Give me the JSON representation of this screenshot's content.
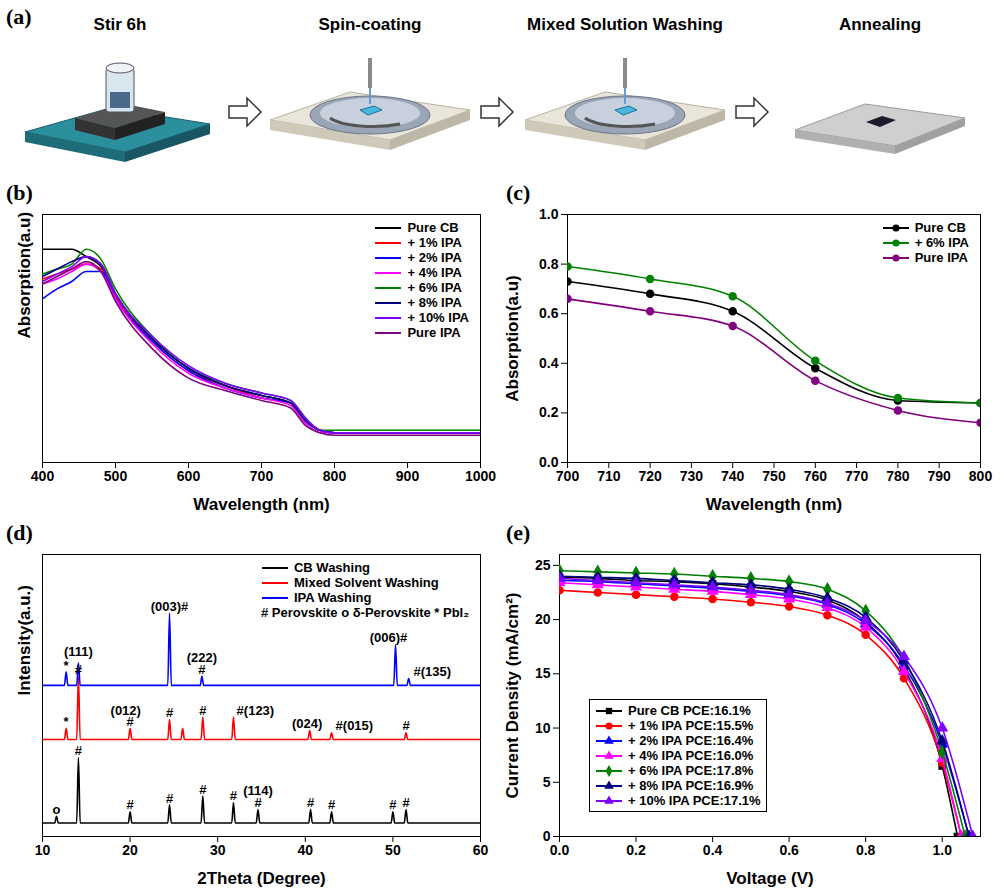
{
  "diagram": {
    "panel": "(a)",
    "steps": [
      "Stir 6h",
      "Spin-coating",
      "Mixed Solution Washing",
      "Annealing"
    ]
  },
  "chart_data": [
    {
      "panel": "(b)",
      "type": "line",
      "xlabel": "Wavelength (nm)",
      "ylabel": "Absorption(a.u)",
      "xlim": [
        400,
        1000
      ],
      "xticks": [
        400,
        500,
        600,
        700,
        800,
        900,
        1000
      ],
      "ylim": [
        0,
        1
      ],
      "tick_labels": "x",
      "legend": "upper right",
      "x": [
        400,
        420,
        440,
        460,
        480,
        500,
        550,
        600,
        650,
        700,
        740,
        760,
        780,
        800,
        900,
        1000
      ],
      "series": [
        {
          "name": "Pure CB",
          "color": "#000000",
          "values": [
            0.86,
            0.86,
            0.86,
            0.83,
            0.79,
            0.68,
            0.5,
            0.38,
            0.31,
            0.27,
            0.24,
            0.17,
            0.13,
            0.12,
            0.12,
            0.12
          ]
        },
        {
          "name": "+ 1% IPA",
          "color": "#ff0000",
          "values": [
            0.74,
            0.76,
            0.78,
            0.8,
            0.78,
            0.67,
            0.49,
            0.37,
            0.31,
            0.26,
            0.24,
            0.17,
            0.13,
            0.12,
            0.12,
            0.12
          ]
        },
        {
          "name": "+ 2% IPA",
          "color": "#0000ff",
          "values": [
            0.66,
            0.7,
            0.73,
            0.77,
            0.77,
            0.66,
            0.49,
            0.37,
            0.3,
            0.26,
            0.24,
            0.17,
            0.13,
            0.12,
            0.12,
            0.12
          ]
        },
        {
          "name": "+ 4% IPA",
          "color": "#ff00ff",
          "values": [
            0.72,
            0.74,
            0.77,
            0.8,
            0.77,
            0.66,
            0.48,
            0.36,
            0.3,
            0.26,
            0.23,
            0.16,
            0.12,
            0.12,
            0.12,
            0.12
          ]
        },
        {
          "name": "+ 6% IPA",
          "color": "#008000",
          "values": [
            0.76,
            0.78,
            0.8,
            0.86,
            0.82,
            0.7,
            0.51,
            0.38,
            0.32,
            0.28,
            0.25,
            0.18,
            0.13,
            0.13,
            0.13,
            0.13
          ]
        },
        {
          "name": "+ 8% IPA",
          "color": "#000080",
          "values": [
            0.75,
            0.78,
            0.81,
            0.83,
            0.8,
            0.68,
            0.5,
            0.38,
            0.31,
            0.27,
            0.24,
            0.17,
            0.13,
            0.12,
            0.12,
            0.12
          ]
        },
        {
          "name": "+ 10% IPA",
          "color": "#8000ff",
          "values": [
            0.73,
            0.76,
            0.79,
            0.83,
            0.8,
            0.68,
            0.51,
            0.39,
            0.32,
            0.28,
            0.25,
            0.18,
            0.13,
            0.12,
            0.12,
            0.12
          ]
        },
        {
          "name": "Pure IPA",
          "color": "#800080",
          "values": [
            0.72,
            0.75,
            0.78,
            0.81,
            0.77,
            0.65,
            0.46,
            0.34,
            0.29,
            0.25,
            0.22,
            0.15,
            0.12,
            0.11,
            0.11,
            0.11
          ]
        }
      ]
    },
    {
      "panel": "(c)",
      "type": "line",
      "xlabel": "Wavelength (nm)",
      "ylabel": "Absorption(a.u)",
      "xlim": [
        700,
        800
      ],
      "xticks": [
        700,
        710,
        720,
        730,
        740,
        750,
        760,
        770,
        780,
        790,
        800
      ],
      "ylim": [
        0,
        1
      ],
      "yticks": [
        {
          "value": 0,
          "label": "0.0"
        },
        0.2,
        0.4,
        0.6,
        0.8,
        {
          "value": 1,
          "label": "1.0"
        }
      ],
      "legend": "upper right",
      "x": [
        700,
        720,
        740,
        760,
        780,
        800
      ],
      "series": [
        {
          "name": "Pure CB",
          "color": "#000000",
          "marker": "circle",
          "values": [
            0.73,
            0.68,
            0.61,
            0.38,
            0.25,
            0.24
          ]
        },
        {
          "name": "+ 6% IPA",
          "color": "#008000",
          "marker": "circle",
          "values": [
            0.79,
            0.74,
            0.67,
            0.41,
            0.26,
            0.24
          ]
        },
        {
          "name": "Pure IPA",
          "color": "#800080",
          "marker": "circle",
          "values": [
            0.66,
            0.61,
            0.55,
            0.33,
            0.21,
            0.16
          ]
        }
      ]
    },
    {
      "panel": "(d)",
      "type": "line",
      "xlabel": "2Theta (Degree)",
      "ylabel": "Intensity(a.u.)",
      "xlim": [
        10,
        60
      ],
      "xticks": [
        10,
        20,
        30,
        40,
        50,
        60
      ],
      "ylim": [
        0,
        125
      ],
      "tick_labels": "x",
      "legend": "upper right",
      "key": "# Perovskite o δ-Perovskite * PbI₂",
      "series": [
        {
          "name": "CB Washing",
          "color": "#000000",
          "x": [
            10,
            11.4,
            11.6,
            11.8,
            13.9,
            14.1,
            14.3,
            19.8,
            20,
            20.2,
            24.3,
            24.5,
            24.7,
            28.1,
            28.3,
            28.5,
            31.6,
            31.8,
            32,
            34.4,
            34.6,
            34.8,
            40.4,
            40.6,
            40.8,
            42.8,
            43,
            43.2,
            49.8,
            50,
            50.2,
            51.3,
            51.5,
            51.7,
            60
          ],
          "values": [
            6,
            6,
            9,
            6,
            6,
            35,
            6,
            6,
            11,
            6,
            6,
            14,
            6,
            6,
            18,
            6,
            6,
            15,
            6,
            6,
            12,
            6,
            6,
            12,
            6,
            6,
            11,
            6,
            6,
            11,
            6,
            6,
            12,
            6,
            6
          ]
        },
        {
          "name": "Mixed Solvent Washing",
          "color": "#ff0000",
          "x": [
            10,
            12.5,
            12.7,
            12.9,
            13.9,
            14.1,
            14.3,
            19.8,
            20,
            20.2,
            24.3,
            24.5,
            24.7,
            25.8,
            26,
            26.2,
            28.1,
            28.3,
            28.5,
            31.6,
            31.8,
            32,
            40.3,
            40.5,
            40.7,
            42.8,
            43,
            43.2,
            51.3,
            51.5,
            51.7,
            60
          ],
          "values": [
            43,
            43,
            48,
            43,
            43,
            71,
            43,
            43,
            48,
            43,
            43,
            52,
            43,
            43,
            48,
            43,
            43,
            53,
            43,
            43,
            53,
            43,
            43,
            47,
            43,
            43,
            46,
            43,
            43,
            46,
            43,
            43
          ]
        },
        {
          "name": "IPA Washing",
          "color": "#0000ff",
          "x": [
            10,
            12.5,
            12.7,
            12.9,
            13.9,
            14.1,
            14.3,
            24.3,
            24.5,
            24.7,
            28,
            28.2,
            28.4,
            50.1,
            50.3,
            50.5,
            51.6,
            51.8,
            52,
            60
          ],
          "values": [
            67,
            67,
            73,
            67,
            67,
            77,
            67,
            67,
            99,
            67,
            67,
            71,
            67,
            67,
            85,
            67,
            67,
            70,
            67,
            67
          ]
        }
      ],
      "annotations": [
        {
          "x": 12.7,
          "y": 74,
          "text": "*"
        },
        {
          "x": 14.1,
          "y": 80,
          "text": "(111)"
        },
        {
          "x": 24.5,
          "y": 100,
          "text": "(003)#"
        },
        {
          "x": 28.2,
          "y": 72,
          "text": "#"
        },
        {
          "x": 28.2,
          "y": 77.5,
          "text": "(222)"
        },
        {
          "x": 49.5,
          "y": 86,
          "text": "(006)#"
        },
        {
          "x": 54.5,
          "y": 71,
          "text": "#(135)"
        },
        {
          "x": 12.7,
          "y": 49,
          "text": "*"
        },
        {
          "x": 14.1,
          "y": 72,
          "text": "#"
        },
        {
          "x": 20,
          "y": 49,
          "text": "#"
        },
        {
          "x": 19.5,
          "y": 54,
          "text": "(012)"
        },
        {
          "x": 24.5,
          "y": 53,
          "text": "#"
        },
        {
          "x": 28.3,
          "y": 54,
          "text": "#"
        },
        {
          "x": 34.3,
          "y": 54,
          "text": "#(123)"
        },
        {
          "x": 40.2,
          "y": 48,
          "text": "(024)"
        },
        {
          "x": 45.6,
          "y": 47,
          "text": "#(015)"
        },
        {
          "x": 51.5,
          "y": 47,
          "text": "#"
        },
        {
          "x": 11.6,
          "y": 10,
          "text": "o"
        },
        {
          "x": 14.1,
          "y": 36,
          "text": "#"
        },
        {
          "x": 20,
          "y": 12,
          "text": "#"
        },
        {
          "x": 24.5,
          "y": 15,
          "text": "#"
        },
        {
          "x": 28.3,
          "y": 19,
          "text": "#"
        },
        {
          "x": 31.8,
          "y": 16,
          "text": "#"
        },
        {
          "x": 34.6,
          "y": 13,
          "text": "#"
        },
        {
          "x": 34.6,
          "y": 18.5,
          "text": "(114)"
        },
        {
          "x": 40.6,
          "y": 13,
          "text": "#"
        },
        {
          "x": 43,
          "y": 12,
          "text": "#"
        },
        {
          "x": 50,
          "y": 12,
          "text": "#"
        },
        {
          "x": 51.5,
          "y": 13,
          "text": "#"
        }
      ]
    },
    {
      "panel": "(e)",
      "type": "line",
      "xlabel": "Voltage (V)",
      "ylabel": "Current Density (mA/cm²)",
      "xlim": [
        0,
        1.1
      ],
      "xticks": [
        {
          "value": 0,
          "label": "0.0"
        },
        0.2,
        0.4,
        0.6,
        0.8,
        {
          "value": 1,
          "label": "1.0"
        }
      ],
      "ylim": [
        0,
        26
      ],
      "yticks": [
        0,
        5,
        10,
        15,
        20,
        25
      ],
      "legend": "lower left",
      "series": [
        {
          "name": "Pure CB PCE:16.1%",
          "color": "#000000",
          "marker": "square",
          "x": [
            0,
            0.1,
            0.2,
            0.3,
            0.4,
            0.5,
            0.6,
            0.7,
            0.8,
            0.9,
            1.0,
            1.04
          ],
          "values": [
            23.9,
            23.8,
            23.6,
            23.5,
            23.3,
            23.0,
            22.6,
            21.8,
            19.8,
            15.5,
            6.5,
            0
          ]
        },
        {
          "name": "+ 1% IPA PCE:15.5%",
          "color": "#ff0000",
          "marker": "circle",
          "x": [
            0,
            0.1,
            0.2,
            0.3,
            0.4,
            0.5,
            0.6,
            0.7,
            0.8,
            0.9,
            1.0,
            1.05
          ],
          "values": [
            22.7,
            22.5,
            22.3,
            22.1,
            21.9,
            21.6,
            21.2,
            20.4,
            18.6,
            14.6,
            6.8,
            0
          ]
        },
        {
          "name": "+ 2% IPA PCE:16.4%",
          "color": "#0000ff",
          "marker": "triangle",
          "x": [
            0,
            0.1,
            0.2,
            0.3,
            0.4,
            0.5,
            0.6,
            0.7,
            0.8,
            0.9,
            1.0,
            1.07
          ],
          "values": [
            23.6,
            23.5,
            23.3,
            23.1,
            22.9,
            22.6,
            22.2,
            21.4,
            19.6,
            15.8,
            8.5,
            0
          ]
        },
        {
          "name": "+ 4% IPA PCE:16.0%",
          "color": "#ff00ff",
          "marker": "triangle",
          "x": [
            0,
            0.1,
            0.2,
            0.3,
            0.4,
            0.5,
            0.6,
            0.7,
            0.8,
            0.9,
            1.0,
            1.05
          ],
          "values": [
            23.4,
            23.2,
            23.0,
            22.8,
            22.6,
            22.3,
            21.9,
            21.1,
            19.3,
            15.2,
            7.2,
            0
          ]
        },
        {
          "name": "+ 6% IPA PCE:17.8%",
          "color": "#008000",
          "marker": "diamond",
          "x": [
            0,
            0.1,
            0.2,
            0.3,
            0.4,
            0.5,
            0.6,
            0.7,
            0.8,
            0.9,
            1.0,
            1.06
          ],
          "values": [
            24.5,
            24.4,
            24.3,
            24.2,
            24.0,
            23.8,
            23.5,
            22.8,
            20.8,
            16.4,
            7.8,
            0
          ]
        },
        {
          "name": "+ 8% IPA PCE:16.9%",
          "color": "#000080",
          "marker": "triangle",
          "x": [
            0,
            0.1,
            0.2,
            0.3,
            0.4,
            0.5,
            0.6,
            0.7,
            0.8,
            0.9,
            1.0,
            1.07
          ],
          "values": [
            24.0,
            23.9,
            23.8,
            23.6,
            23.4,
            23.2,
            22.8,
            22.0,
            20.2,
            16.2,
            8.8,
            0
          ]
        },
        {
          "name": "+ 10% IPA PCE:17.1%",
          "color": "#8000ff",
          "marker": "triangle",
          "x": [
            0,
            0.1,
            0.2,
            0.3,
            0.4,
            0.5,
            0.6,
            0.7,
            0.8,
            0.9,
            1.0,
            1.08
          ],
          "values": [
            23.8,
            23.6,
            23.4,
            23.2,
            23.0,
            22.7,
            22.3,
            21.5,
            19.9,
            16.6,
            10.0,
            0
          ]
        }
      ]
    }
  ]
}
